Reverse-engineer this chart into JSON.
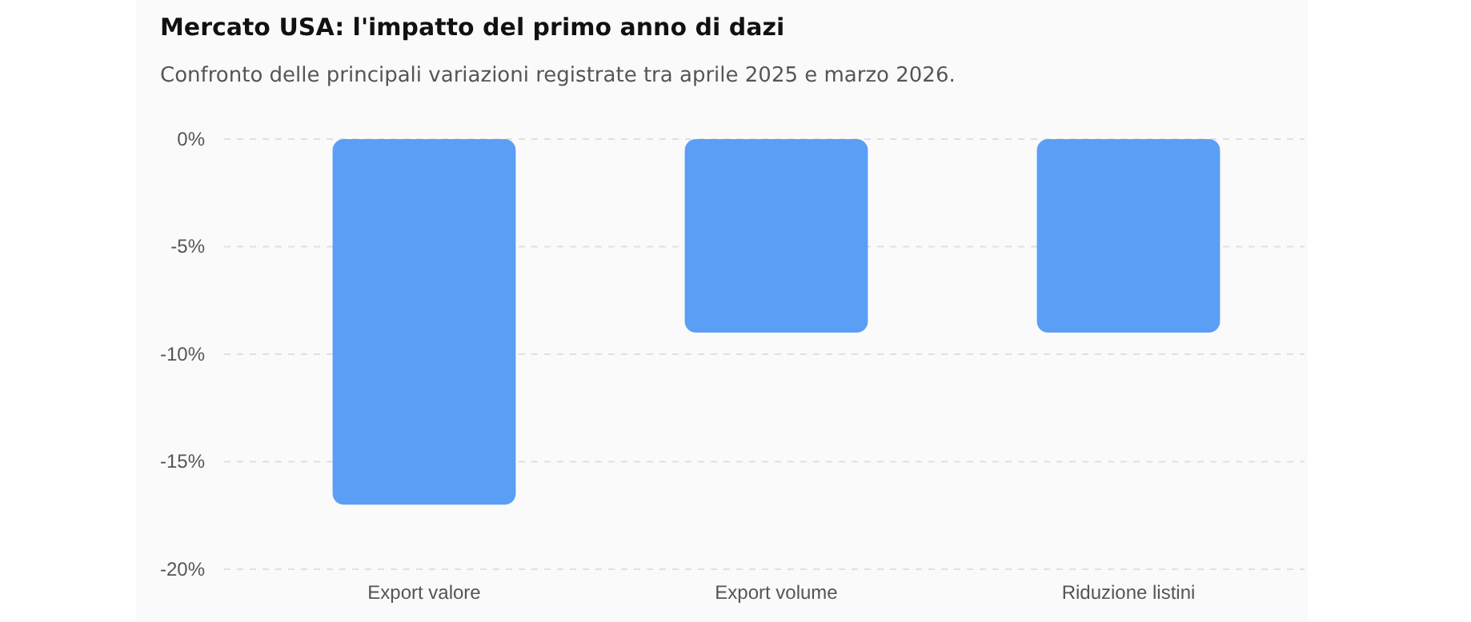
{
  "chart_data": {
    "type": "bar",
    "title": "Mercato USA: l'impatto del primo anno di dazi",
    "subtitle": "Confronto delle principali variazioni registrate tra aprile 2025 e marzo 2026.",
    "categories": [
      "Export valore",
      "Export volume",
      "Riduzione listini"
    ],
    "values": [
      -17,
      -9,
      -9
    ],
    "color": "#5b9ef5",
    "ylim": [
      -20,
      0
    ],
    "yticks": [
      {
        "value": -20,
        "label": "-20%"
      },
      {
        "value": -15,
        "label": "-15%"
      },
      {
        "value": -10,
        "label": "-10%"
      },
      {
        "value": -5,
        "label": "-5%"
      },
      {
        "value": 0,
        "label": "0%"
      }
    ],
    "grid": "y"
  }
}
